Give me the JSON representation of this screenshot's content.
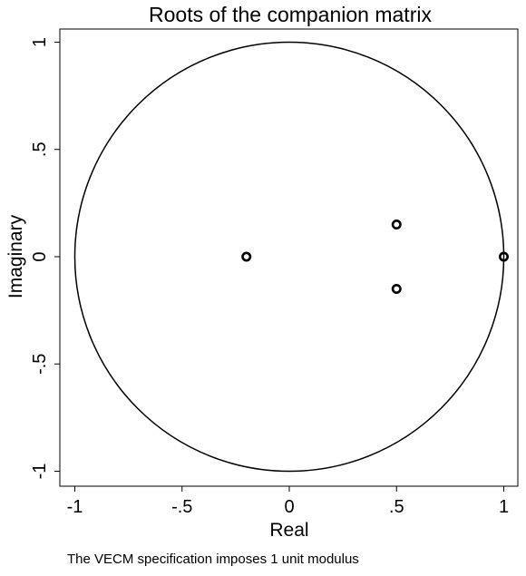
{
  "chart_data": {
    "type": "scatter",
    "title": "Roots of the companion matrix",
    "xlabel": "Real",
    "ylabel": "Imaginary",
    "xlim": [
      -1.1,
      1.1
    ],
    "ylim": [
      -1.1,
      1.1
    ],
    "x_ticks": [
      -1,
      -0.5,
      0,
      0.5,
      1
    ],
    "x_tick_labels": [
      "-1",
      "-.5",
      "0",
      ".5",
      "1"
    ],
    "y_ticks": [
      -1,
      -0.5,
      0,
      0.5,
      1
    ],
    "y_tick_labels": [
      "-1",
      "-.5",
      "0",
      ".5",
      "1"
    ],
    "grid": false,
    "unit_circle": {
      "radius": 1,
      "color": "#000000"
    },
    "points": [
      {
        "x": -0.2,
        "y": 0.0
      },
      {
        "x": 0.5,
        "y": 0.15
      },
      {
        "x": 0.5,
        "y": -0.15
      },
      {
        "x": 1.0,
        "y": 0.0
      }
    ],
    "marker_color": "#000000",
    "note": "The VECM specification imposes 1 unit modulus"
  }
}
